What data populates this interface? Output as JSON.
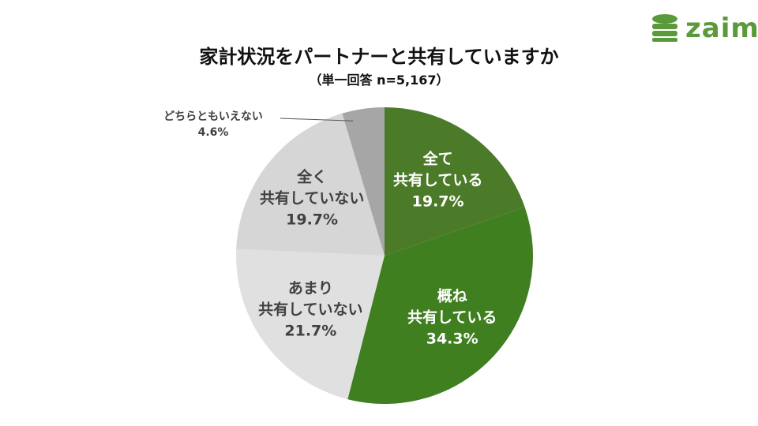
{
  "logo": "zaim",
  "chart_data": {
    "type": "pie",
    "title": "家計状況をパートナーと共有していますか",
    "subtitle": "（単一回答 n=5,167）",
    "categories": [
      "全て\n共有している",
      "概ね\n共有している",
      "あまり\n共有していない",
      "全く\n共有していない",
      "どちらともいえない"
    ],
    "values": [
      19.7,
      34.3,
      21.7,
      19.7,
      4.6
    ],
    "value_labels": [
      "19.7%",
      "34.3%",
      "21.7%",
      "19.7%",
      "4.6%"
    ],
    "colors": [
      "#4b7a29",
      "#3f7f1f",
      "#e0e0e0",
      "#d6d6d6",
      "#a6a6a6"
    ]
  }
}
